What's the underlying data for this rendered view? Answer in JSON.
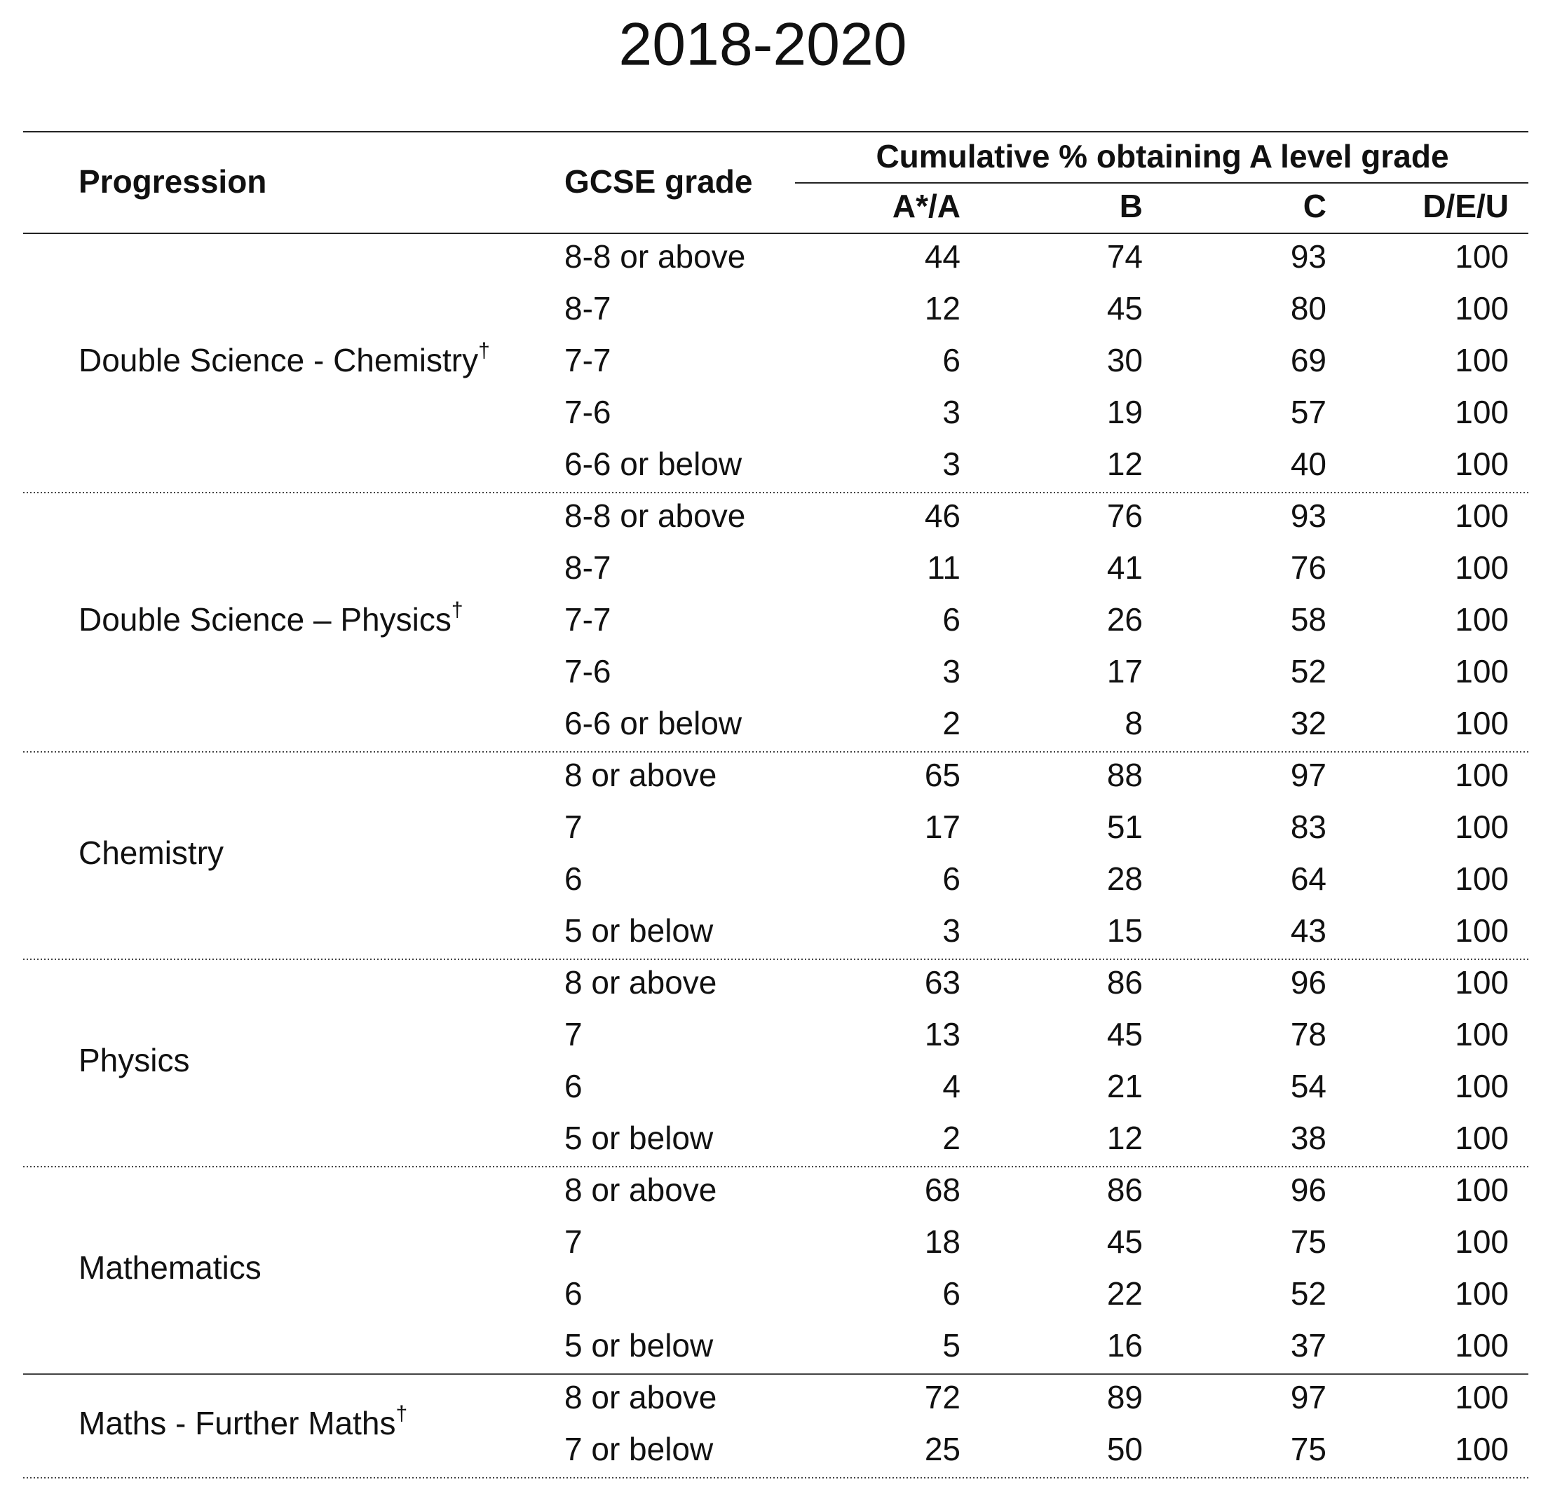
{
  "title": "2018-2020",
  "table": {
    "headers": {
      "progression": "Progression",
      "gcse": "GCSE grade",
      "cumulative": "Cumulative % obtaining A level grade",
      "grades": [
        "A*/A",
        "B",
        "C",
        "D/E/U"
      ]
    },
    "groups": [
      {
        "name": "Double Science - Chemistry",
        "mark": "†",
        "rows": [
          {
            "gcse": "8-8 or above",
            "values": [
              44,
              74,
              93,
              100
            ]
          },
          {
            "gcse": "8-7",
            "values": [
              12,
              45,
              80,
              100
            ]
          },
          {
            "gcse": "7-7",
            "values": [
              6,
              30,
              69,
              100
            ]
          },
          {
            "gcse": "7-6",
            "values": [
              3,
              19,
              57,
              100
            ]
          },
          {
            "gcse": "6-6 or below",
            "values": [
              3,
              12,
              40,
              100
            ]
          }
        ]
      },
      {
        "name": "Double Science – Physics",
        "mark": "†",
        "rows": [
          {
            "gcse": "8-8 or above",
            "values": [
              46,
              76,
              93,
              100
            ]
          },
          {
            "gcse": "8-7",
            "values": [
              11,
              41,
              76,
              100
            ]
          },
          {
            "gcse": "7-7",
            "values": [
              6,
              26,
              58,
              100
            ]
          },
          {
            "gcse": "7-6",
            "values": [
              3,
              17,
              52,
              100
            ]
          },
          {
            "gcse": "6-6 or below",
            "values": [
              2,
              8,
              32,
              100
            ]
          }
        ]
      },
      {
        "name": "Chemistry",
        "rows": [
          {
            "gcse": "8 or above",
            "values": [
              65,
              88,
              97,
              100
            ]
          },
          {
            "gcse": "7",
            "values": [
              17,
              51,
              83,
              100
            ]
          },
          {
            "gcse": "6",
            "values": [
              6,
              28,
              64,
              100
            ]
          },
          {
            "gcse": "5 or below",
            "values": [
              3,
              15,
              43,
              100
            ]
          }
        ]
      },
      {
        "name": "Physics",
        "rows": [
          {
            "gcse": "8 or above",
            "values": [
              63,
              86,
              96,
              100
            ]
          },
          {
            "gcse": "7",
            "values": [
              13,
              45,
              78,
              100
            ]
          },
          {
            "gcse": "6",
            "values": [
              4,
              21,
              54,
              100
            ]
          },
          {
            "gcse": "5 or below",
            "values": [
              2,
              12,
              38,
              100
            ]
          }
        ]
      },
      {
        "name": "Mathematics",
        "rows": [
          {
            "gcse": "8 or above",
            "values": [
              68,
              86,
              96,
              100
            ]
          },
          {
            "gcse": "7",
            "values": [
              18,
              45,
              75,
              100
            ]
          },
          {
            "gcse": "6",
            "values": [
              6,
              22,
              52,
              100
            ]
          },
          {
            "gcse": "5 or below",
            "values": [
              5,
              16,
              37,
              100
            ]
          }
        ]
      },
      {
        "name": "Maths - Further Maths",
        "mark": "†",
        "rows": [
          {
            "gcse": "8 or above",
            "values": [
              72,
              89,
              97,
              100
            ]
          },
          {
            "gcse": "7 or below",
            "values": [
              25,
              50,
              75,
              100
            ]
          }
        ]
      }
    ]
  }
}
